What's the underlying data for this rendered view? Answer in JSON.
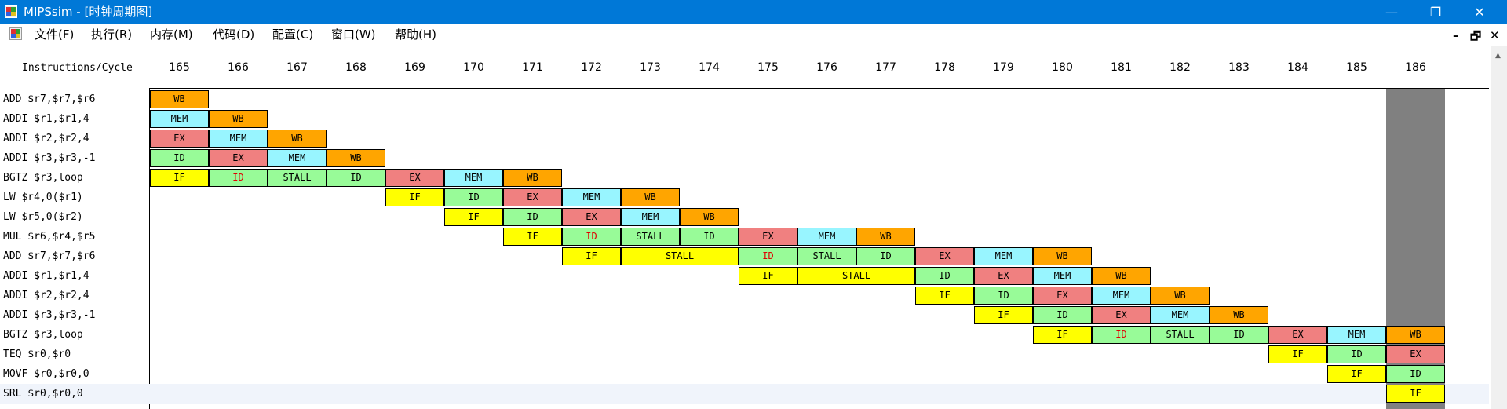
{
  "app": {
    "title": "MIPSsim - [时钟周期图]",
    "minimize": "—",
    "maximize": "❐",
    "close": "✕"
  },
  "menu": {
    "items": [
      {
        "label": "文件(F)",
        "name": "menu-file"
      },
      {
        "label": "执行(R)",
        "name": "menu-run"
      },
      {
        "label": "内存(M)",
        "name": "menu-memory"
      },
      {
        "label": "代码(D)",
        "name": "menu-code"
      },
      {
        "label": "配置(C)",
        "name": "menu-config"
      },
      {
        "label": "窗口(W)",
        "name": "menu-window"
      },
      {
        "label": "帮助(H)",
        "name": "menu-help"
      }
    ],
    "mdi_minimize": "–",
    "mdi_restore": "🗗",
    "mdi_close": "✕"
  },
  "diagram": {
    "header_label": "Instructions/Cycle",
    "first_cycle": 165,
    "cycles": [
      "165",
      "166",
      "167",
      "168",
      "169",
      "170",
      "171",
      "172",
      "173",
      "174",
      "175",
      "176",
      "177",
      "178",
      "179",
      "180",
      "181",
      "182",
      "183",
      "184",
      "185",
      "186"
    ],
    "current_cycle": "186",
    "colors": {
      "IF": "#ffff00",
      "ID": "#98fb98",
      "EX": "#f08080",
      "MEM": "#98f5ff",
      "WB": "#ffa500",
      "current_column": "#808080",
      "stall_id_text": "#e00000"
    },
    "instructions": [
      {
        "label": "ADD $r7,$r7,$r6",
        "stages": [
          {
            "c": 165,
            "s": "WB"
          }
        ]
      },
      {
        "label": "ADDI $r1,$r1,4",
        "stages": [
          {
            "c": 165,
            "s": "MEM"
          },
          {
            "c": 166,
            "s": "WB"
          }
        ]
      },
      {
        "label": "ADDI $r2,$r2,4",
        "stages": [
          {
            "c": 165,
            "s": "EX"
          },
          {
            "c": 166,
            "s": "MEM"
          },
          {
            "c": 167,
            "s": "WB"
          }
        ]
      },
      {
        "label": "ADDI $r3,$r3,-1",
        "stages": [
          {
            "c": 165,
            "s": "ID"
          },
          {
            "c": 166,
            "s": "EX"
          },
          {
            "c": 167,
            "s": "MEM"
          },
          {
            "c": 168,
            "s": "WB"
          }
        ]
      },
      {
        "label": "BGTZ $r3,loop",
        "stages": [
          {
            "c": 165,
            "s": "IF"
          },
          {
            "c": 166,
            "s": "ID",
            "red": true
          },
          {
            "c": 167,
            "s": "STALL",
            "cls": "ID"
          },
          {
            "c": 168,
            "s": "ID"
          },
          {
            "c": 169,
            "s": "EX"
          },
          {
            "c": 170,
            "s": "MEM"
          },
          {
            "c": 171,
            "s": "WB"
          }
        ]
      },
      {
        "label": "LW $r4,0($r1)",
        "stages": [
          {
            "c": 169,
            "s": "IF"
          },
          {
            "c": 170,
            "s": "ID"
          },
          {
            "c": 171,
            "s": "EX"
          },
          {
            "c": 172,
            "s": "MEM"
          },
          {
            "c": 173,
            "s": "WB"
          }
        ]
      },
      {
        "label": "LW $r5,0($r2)",
        "stages": [
          {
            "c": 170,
            "s": "IF"
          },
          {
            "c": 171,
            "s": "ID"
          },
          {
            "c": 172,
            "s": "EX"
          },
          {
            "c": 173,
            "s": "MEM"
          },
          {
            "c": 174,
            "s": "WB"
          }
        ]
      },
      {
        "label": "MUL $r6,$r4,$r5",
        "stages": [
          {
            "c": 171,
            "s": "IF"
          },
          {
            "c": 172,
            "s": "ID",
            "red": true
          },
          {
            "c": 173,
            "s": "STALL",
            "cls": "ID"
          },
          {
            "c": 174,
            "s": "ID"
          },
          {
            "c": 175,
            "s": "EX"
          },
          {
            "c": 176,
            "s": "MEM"
          },
          {
            "c": 177,
            "s": "WB"
          }
        ]
      },
      {
        "label": "ADD $r7,$r7,$r6",
        "stages": [
          {
            "c": 172,
            "s": "IF"
          },
          {
            "c": 173,
            "s": "STALL",
            "cls": "IF",
            "span": 2
          },
          {
            "c": 175,
            "s": "ID",
            "red": true
          },
          {
            "c": 176,
            "s": "STALL",
            "cls": "ID"
          },
          {
            "c": 177,
            "s": "ID"
          },
          {
            "c": 178,
            "s": "EX"
          },
          {
            "c": 179,
            "s": "MEM"
          },
          {
            "c": 180,
            "s": "WB"
          }
        ]
      },
      {
        "label": "ADDI $r1,$r1,4",
        "stages": [
          {
            "c": 175,
            "s": "IF"
          },
          {
            "c": 176,
            "s": "STALL",
            "cls": "IF",
            "span": 2
          },
          {
            "c": 178,
            "s": "ID"
          },
          {
            "c": 179,
            "s": "EX"
          },
          {
            "c": 180,
            "s": "MEM"
          },
          {
            "c": 181,
            "s": "WB"
          }
        ]
      },
      {
        "label": "ADDI $r2,$r2,4",
        "stages": [
          {
            "c": 178,
            "s": "IF"
          },
          {
            "c": 179,
            "s": "ID"
          },
          {
            "c": 180,
            "s": "EX"
          },
          {
            "c": 181,
            "s": "MEM"
          },
          {
            "c": 182,
            "s": "WB"
          }
        ]
      },
      {
        "label": "ADDI $r3,$r3,-1",
        "stages": [
          {
            "c": 179,
            "s": "IF"
          },
          {
            "c": 180,
            "s": "ID"
          },
          {
            "c": 181,
            "s": "EX"
          },
          {
            "c": 182,
            "s": "MEM"
          },
          {
            "c": 183,
            "s": "WB"
          }
        ]
      },
      {
        "label": "BGTZ $r3,loop",
        "stages": [
          {
            "c": 180,
            "s": "IF"
          },
          {
            "c": 181,
            "s": "ID",
            "red": true
          },
          {
            "c": 182,
            "s": "STALL",
            "cls": "ID"
          },
          {
            "c": 183,
            "s": "ID"
          },
          {
            "c": 184,
            "s": "EX"
          },
          {
            "c": 185,
            "s": "MEM"
          },
          {
            "c": 186,
            "s": "WB"
          }
        ]
      },
      {
        "label": "TEQ $r0,$r0",
        "stages": [
          {
            "c": 184,
            "s": "IF"
          },
          {
            "c": 185,
            "s": "ID"
          },
          {
            "c": 186,
            "s": "EX"
          }
        ]
      },
      {
        "label": "MOVF $r0,$r0,0",
        "stages": [
          {
            "c": 185,
            "s": "IF"
          },
          {
            "c": 186,
            "s": "ID"
          }
        ]
      },
      {
        "label": "SRL $r0,$r0,0",
        "stages": [
          {
            "c": 186,
            "s": "IF"
          }
        ]
      }
    ]
  }
}
